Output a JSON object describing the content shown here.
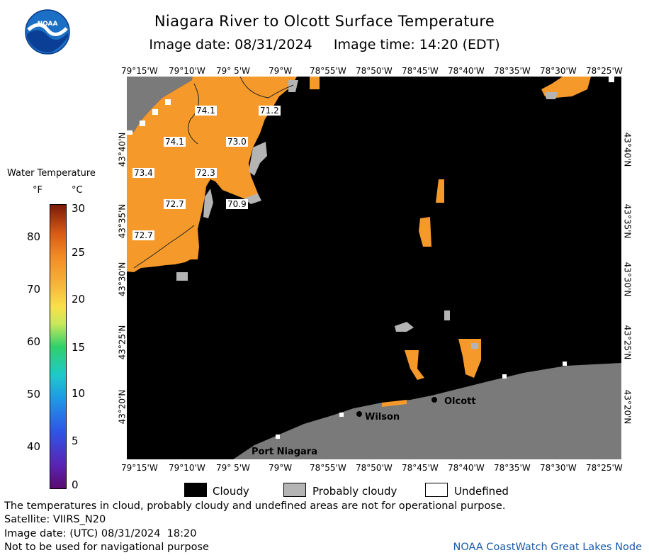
{
  "header": {
    "title": "Niagara River to Olcott Surface Temperature",
    "subtitle": "Image date: 08/31/2024     Image time: 14:20 (EDT)"
  },
  "axes": {
    "lon_ticks": [
      "79°15'W",
      "79°10'W",
      "79° 5'W",
      "79°W",
      "78°55'W",
      "78°50'W",
      "78°45'W",
      "78°40'W",
      "78°35'W",
      "78°30'W",
      "78°25'W"
    ],
    "lat_ticks": [
      "43°40'N",
      "43°35'N",
      "43°30'N",
      "43°25'N",
      "43°20'N"
    ]
  },
  "map": {
    "temperature_labels": [
      "74.1",
      "71.2",
      "74.1",
      "73.0",
      "73.4",
      "72.3",
      "72.7",
      "70.9",
      "72.7"
    ],
    "places": [
      "Olcott",
      "Wilson",
      "Port Niagara"
    ],
    "colors": {
      "cloud": "#000000",
      "probably_cloudy": "#b4b4b4",
      "land": "#7a7a7a",
      "undefined": "#ffffff",
      "water_warm": "#f59a2a"
    }
  },
  "legend": {
    "title": "Water Temperature",
    "unit_f": "°F",
    "unit_c": "°C",
    "f_ticks": [
      "80",
      "70",
      "60",
      "50",
      "40"
    ],
    "c_ticks": [
      "30",
      "25",
      "20",
      "15",
      "10",
      "5",
      "0"
    ]
  },
  "key": {
    "cloudy": "Cloudy",
    "probably_cloudy": "Probably cloudy",
    "undefined": "Undefined"
  },
  "footer": {
    "line1": "The temperatures in cloud, probably cloudy and undefined areas are not for operational purpose.",
    "line2": "Satellite: VIIRS_N20",
    "line3": "Image date: (UTC) 08/31/2024  18:20",
    "line4": "Not to be used for navigational purpose",
    "credit": "NOAA CoastWatch Great Lakes Node"
  }
}
